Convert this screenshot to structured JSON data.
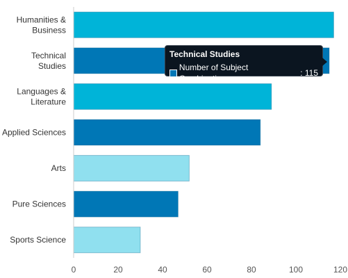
{
  "chart_data": {
    "type": "bar",
    "orientation": "horizontal",
    "categories": [
      [
        "Humanities &",
        "Business"
      ],
      [
        "Technical",
        "Studies"
      ],
      [
        "Languages &",
        "Literature"
      ],
      [
        "Applied Sciences"
      ],
      [
        "Arts"
      ],
      [
        "Pure Sciences"
      ],
      [
        "Sports Science"
      ]
    ],
    "series": [
      {
        "name": "Number of Subject Combinations",
        "values": [
          117,
          115,
          89,
          84,
          52,
          47,
          30
        ]
      }
    ],
    "bar_colors": [
      "#00b4d8",
      "#0077b6",
      "#00b4d8",
      "#0077b6",
      "#90e0ef",
      "#0077b6",
      "#90e0ef"
    ],
    "xlim": [
      0,
      120
    ],
    "xticks": [
      0,
      20,
      40,
      60,
      80,
      100,
      120
    ],
    "grid": false,
    "title": "",
    "xlabel": "",
    "ylabel": ""
  },
  "tooltip": {
    "title": "Technical Studies",
    "series_label": "Number of Subject Combinations",
    "value": "115",
    "color": "#0077b6"
  }
}
